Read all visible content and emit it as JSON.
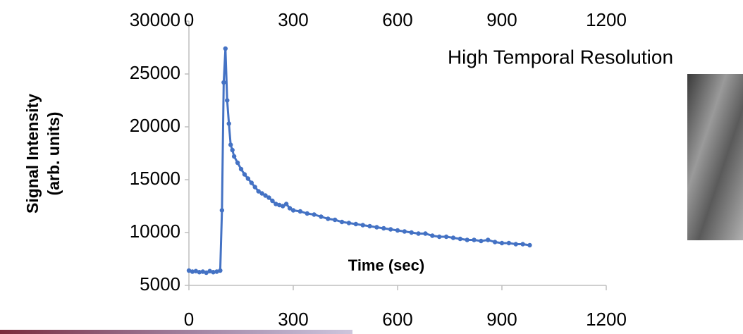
{
  "chart_data": {
    "type": "line",
    "title": "High Temporal Resolution",
    "x_label": "Time (sec)",
    "y_label": [
      "Signal Intensity",
      "(arb. units)"
    ],
    "x": [
      0,
      10,
      20,
      30,
      40,
      50,
      60,
      70,
      80,
      90,
      95,
      100,
      105,
      110,
      115,
      120,
      125,
      130,
      140,
      150,
      160,
      170,
      180,
      190,
      200,
      210,
      220,
      230,
      240,
      250,
      260,
      270,
      280,
      290,
      300,
      320,
      340,
      360,
      380,
      400,
      420,
      440,
      460,
      480,
      500,
      520,
      540,
      560,
      580,
      600,
      620,
      640,
      660,
      680,
      700,
      720,
      740,
      760,
      780,
      800,
      820,
      840,
      860,
      880,
      900,
      920,
      940,
      960,
      980
    ],
    "series": [
      {
        "color": "#4472c4",
        "values": [
          6400,
          6300,
          6350,
          6250,
          6300,
          6200,
          6350,
          6250,
          6300,
          6400,
          12100,
          24200,
          27400,
          22500,
          20300,
          18300,
          17800,
          17200,
          16600,
          16000,
          15500,
          15100,
          14700,
          14300,
          13900,
          13700,
          13500,
          13300,
          13000,
          12700,
          12600,
          12500,
          12700,
          12300,
          12100,
          12000,
          11800,
          11700,
          11500,
          11300,
          11200,
          11000,
          10900,
          10800,
          10700,
          10600,
          10500,
          10400,
          10300,
          10200,
          10100,
          10000,
          9900,
          9900,
          9700,
          9600,
          9600,
          9500,
          9400,
          9300,
          9300,
          9200,
          9300,
          9100,
          9000,
          9000,
          8900,
          8900,
          8800
        ]
      }
    ],
    "xlim": [
      0,
      1200
    ],
    "xticks": [
      0,
      300,
      600,
      900,
      1200
    ],
    "ylim": [
      5000,
      30000
    ],
    "yticks": [
      5000,
      10000,
      15000,
      20000,
      25000,
      30000
    ],
    "grid": false
  }
}
